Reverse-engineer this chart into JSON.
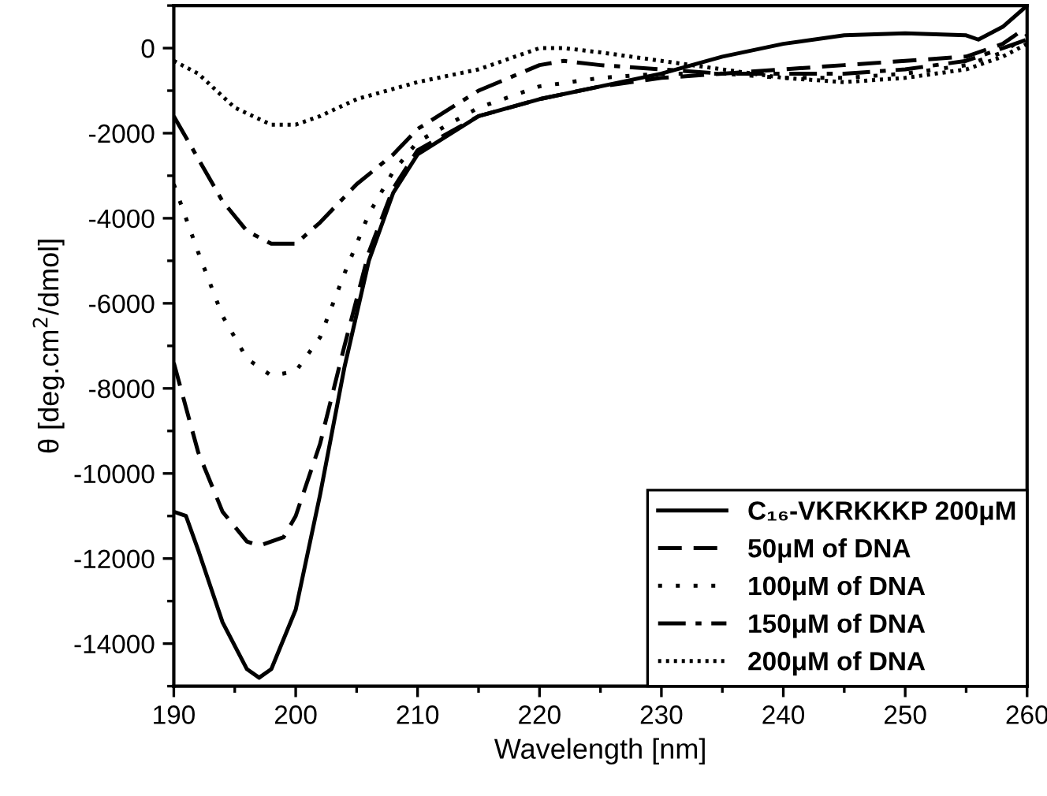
{
  "chart_data": {
    "type": "line",
    "xlabel": "Wavelength [nm]",
    "ylabel": "θ [deg.cm$^{2}$/dmol]",
    "xlim": [
      190,
      260
    ],
    "xticks": [
      190,
      200,
      210,
      220,
      230,
      240,
      250,
      260
    ],
    "ylim": [
      -15000,
      1000
    ],
    "yticks": [
      -14000,
      -12000,
      -10000,
      -8000,
      -6000,
      -4000,
      -2000,
      0
    ],
    "legend": "bottom right",
    "grid": false,
    "marker": "none",
    "series": [
      {
        "name": "C₁₆-VKRKKKP 200μM",
        "color": "#000000",
        "line_style": "solid",
        "x": [
          190,
          191,
          192,
          194,
          196,
          197,
          198,
          200,
          202,
          204,
          206,
          208,
          210,
          215,
          220,
          225,
          230,
          235,
          240,
          245,
          250,
          255,
          256,
          258,
          260
        ],
        "values": [
          -10900,
          -11000,
          -11800,
          -13500,
          -14600,
          -14800,
          -14600,
          -13200,
          -10500,
          -7500,
          -5000,
          -3400,
          -2500,
          -1600,
          -1200,
          -900,
          -600,
          -200,
          100,
          300,
          350,
          300,
          200,
          500,
          1000
        ]
      },
      {
        "name": "50μM of DNA",
        "color": "#000000",
        "line_style": "dashed",
        "x": [
          190,
          192,
          194,
          196,
          197,
          199,
          200,
          202,
          204,
          206,
          208,
          210,
          215,
          220,
          225,
          230,
          235,
          240,
          245,
          250,
          255,
          258,
          260
        ],
        "values": [
          -7400,
          -9500,
          -10900,
          -11600,
          -11700,
          -11500,
          -11000,
          -9300,
          -7000,
          -4800,
          -3300,
          -2400,
          -1600,
          -1200,
          -900,
          -700,
          -600,
          -500,
          -400,
          -300,
          -200,
          100,
          500
        ]
      },
      {
        "name": "100μM of DNA",
        "color": "#000000",
        "line_style": "dotted",
        "x": [
          190,
          192,
          194,
          196,
          198,
          200,
          202,
          204,
          206,
          208,
          210,
          215,
          220,
          225,
          230,
          235,
          240,
          245,
          250,
          255,
          258,
          260
        ],
        "values": [
          -3200,
          -4800,
          -6300,
          -7300,
          -7700,
          -7600,
          -6800,
          -5300,
          -3900,
          -2900,
          -2200,
          -1400,
          -900,
          -700,
          -600,
          -600,
          -700,
          -700,
          -600,
          -400,
          -100,
          300
        ]
      },
      {
        "name": "150μM of DNA",
        "color": "#000000",
        "line_style": "dashdot",
        "x": [
          190,
          192,
          194,
          196,
          198,
          200,
          202,
          205,
          208,
          210,
          215,
          220,
          222,
          225,
          230,
          235,
          240,
          245,
          250,
          255,
          258,
          260
        ],
        "values": [
          -1600,
          -2600,
          -3600,
          -4300,
          -4600,
          -4600,
          -4100,
          -3200,
          -2500,
          -1900,
          -1000,
          -400,
          -300,
          -400,
          -500,
          -600,
          -600,
          -600,
          -500,
          -300,
          0,
          200
        ]
      },
      {
        "name": "200μM of DNA",
        "color": "#000000",
        "line_style": "densely dotted",
        "x": [
          190,
          192,
          195,
          198,
          200,
          202,
          205,
          210,
          215,
          220,
          222,
          225,
          230,
          235,
          240,
          245,
          250,
          255,
          258,
          260
        ],
        "values": [
          -300,
          -600,
          -1400,
          -1800,
          -1800,
          -1600,
          -1200,
          -800,
          -500,
          0,
          0,
          -100,
          -300,
          -500,
          -700,
          -800,
          -700,
          -500,
          -200,
          100
        ]
      }
    ]
  }
}
